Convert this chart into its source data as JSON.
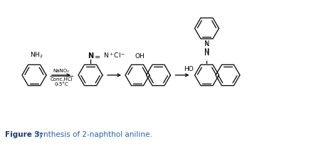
{
  "bg": "#ffffff",
  "lc": "#000000",
  "fig_label": "Figure 3:",
  "fig_label_color": "#1a3a6e",
  "fig_caption": " Synthesis of 2-naphthol aniline.",
  "fig_caption_color": "#2563a8",
  "reagent1": "NaNO₂",
  "reagent2": "Conc.HCl",
  "reagent3": "0-5°C",
  "figsize": [
    4.35,
    2.06
  ],
  "dpi": 100
}
